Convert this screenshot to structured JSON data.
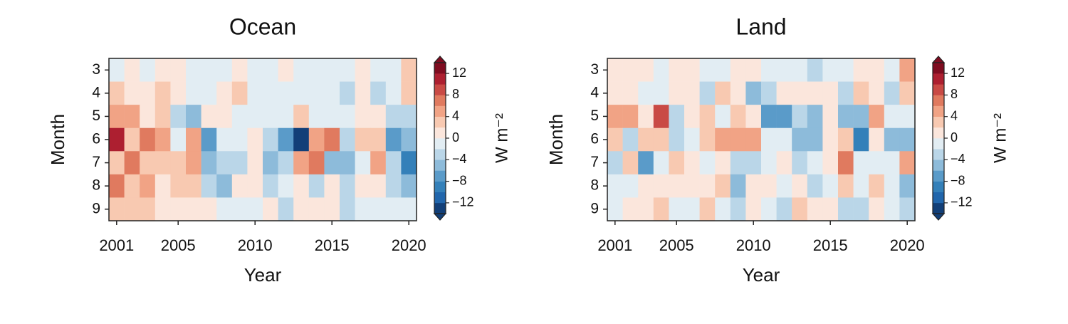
{
  "chart_data": [
    {
      "type": "heatmap",
      "title": "Ocean",
      "xlabel": "Year",
      "ylabel": "Month",
      "x": [
        2001,
        2002,
        2003,
        2004,
        2005,
        2006,
        2007,
        2008,
        2009,
        2010,
        2011,
        2012,
        2013,
        2014,
        2015,
        2016,
        2017,
        2018,
        2019,
        2020
      ],
      "y": [
        3,
        4,
        5,
        6,
        7,
        8,
        9
      ],
      "xlim": [
        2000.5,
        2020.5
      ],
      "ylim": [
        9.5,
        2.5
      ],
      "xticks": [
        2001,
        2005,
        2010,
        2015,
        2020
      ],
      "yticks": [
        3,
        4,
        5,
        6,
        7,
        8,
        9
      ],
      "values": [
        [
          -1,
          1,
          -1,
          1,
          1,
          -1,
          -1,
          -1,
          1,
          -1,
          -1,
          1,
          -1,
          -1,
          -1,
          -1,
          1,
          -1,
          -1,
          3
        ],
        [
          3,
          1,
          1,
          3,
          1,
          -1,
          -1,
          1,
          3,
          -1,
          -1,
          -1,
          -1,
          -1,
          -1,
          -3,
          1,
          -3,
          -1,
          3
        ],
        [
          5,
          5,
          1,
          3,
          -3,
          -5,
          1,
          1,
          -1,
          -1,
          -1,
          -1,
          3,
          -1,
          -1,
          -1,
          1,
          1,
          -3,
          -3
        ],
        [
          11,
          3,
          7,
          5,
          -1,
          5,
          -7,
          -1,
          -1,
          1,
          -3,
          -7,
          -13,
          5,
          7,
          -3,
          3,
          3,
          -7,
          -5
        ],
        [
          3,
          7,
          3,
          3,
          3,
          5,
          -5,
          -3,
          -3,
          1,
          -5,
          -3,
          5,
          7,
          -5,
          -5,
          -1,
          5,
          -3,
          -9
        ],
        [
          7,
          3,
          5,
          1,
          3,
          3,
          -3,
          -5,
          1,
          1,
          -3,
          -1,
          1,
          -3,
          1,
          -3,
          1,
          1,
          -3,
          -5
        ],
        [
          3,
          3,
          3,
          1,
          1,
          1,
          1,
          -1,
          -1,
          -1,
          1,
          -3,
          1,
          1,
          1,
          -3,
          -1,
          -1,
          -1,
          -1
        ]
      ],
      "clim": [
        -14,
        14
      ],
      "colors": [
        "#123f78",
        "#2166ac",
        "#3480b9",
        "#5a9bc9",
        "#8dbbda",
        "#bad6e8",
        "#e2edf3",
        "#fbe6dc",
        "#f8c9b1",
        "#f1a385",
        "#e07a5f",
        "#c94a45",
        "#ad1f30",
        "#7f0c20"
      ],
      "colorbar_ticks": [
        {
          "value": -12,
          "label": "−12"
        },
        {
          "value": -8,
          "label": "−8"
        },
        {
          "value": -4,
          "label": "−4"
        },
        0,
        4,
        8,
        12
      ],
      "colorbar_label": "W m⁻²"
    },
    {
      "type": "heatmap",
      "title": "Land",
      "xlabel": "Year",
      "ylabel": "Month",
      "x": [
        2001,
        2002,
        2003,
        2004,
        2005,
        2006,
        2007,
        2008,
        2009,
        2010,
        2011,
        2012,
        2013,
        2014,
        2015,
        2016,
        2017,
        2018,
        2019,
        2020
      ],
      "y": [
        3,
        4,
        5,
        6,
        7,
        8,
        9
      ],
      "xlim": [
        2000.5,
        2020.5
      ],
      "ylim": [
        9.5,
        2.5
      ],
      "xticks": [
        2001,
        2005,
        2010,
        2015,
        2020
      ],
      "yticks": [
        3,
        4,
        5,
        6,
        7,
        8,
        9
      ],
      "values": [
        [
          1,
          1,
          1,
          -1,
          1,
          1,
          -1,
          -1,
          1,
          1,
          -1,
          -1,
          -1,
          -3,
          -1,
          -1,
          1,
          1,
          -1,
          5
        ],
        [
          1,
          1,
          -1,
          -1,
          1,
          1,
          -3,
          3,
          1,
          -5,
          -3,
          1,
          1,
          1,
          1,
          -3,
          3,
          1,
          -3,
          3
        ],
        [
          5,
          5,
          1,
          9,
          -3,
          1,
          3,
          -1,
          3,
          1,
          -7,
          -7,
          -3,
          -5,
          1,
          -5,
          -5,
          5,
          -1,
          -1
        ],
        [
          3,
          -3,
          3,
          3,
          -3,
          -1,
          3,
          5,
          5,
          5,
          -1,
          -1,
          -5,
          -5,
          1,
          3,
          -9,
          1,
          -5,
          -5
        ],
        [
          -3,
          3,
          -7,
          -1,
          3,
          1,
          -1,
          1,
          -3,
          -3,
          -1,
          1,
          -3,
          -1,
          1,
          7,
          -1,
          -1,
          -1,
          5
        ],
        [
          -1,
          -1,
          1,
          1,
          1,
          1,
          1,
          3,
          -5,
          1,
          1,
          -1,
          1,
          -3,
          -1,
          3,
          -1,
          3,
          -1,
          -5
        ],
        [
          -1,
          1,
          1,
          3,
          -1,
          -1,
          3,
          -1,
          -3,
          1,
          -1,
          -3,
          3,
          1,
          1,
          -3,
          -3,
          1,
          -1,
          -3
        ]
      ],
      "clim": [
        -14,
        14
      ],
      "colors": [
        "#123f78",
        "#2166ac",
        "#3480b9",
        "#5a9bc9",
        "#8dbbda",
        "#bad6e8",
        "#e2edf3",
        "#fbe6dc",
        "#f8c9b1",
        "#f1a385",
        "#e07a5f",
        "#c94a45",
        "#ad1f30",
        "#7f0c20"
      ],
      "colorbar_ticks": [
        {
          "value": -12,
          "label": "−12"
        },
        {
          "value": -8,
          "label": "−8"
        },
        {
          "value": -4,
          "label": "−4"
        },
        0,
        4,
        8,
        12
      ],
      "colorbar_label": "W m⁻²"
    }
  ]
}
